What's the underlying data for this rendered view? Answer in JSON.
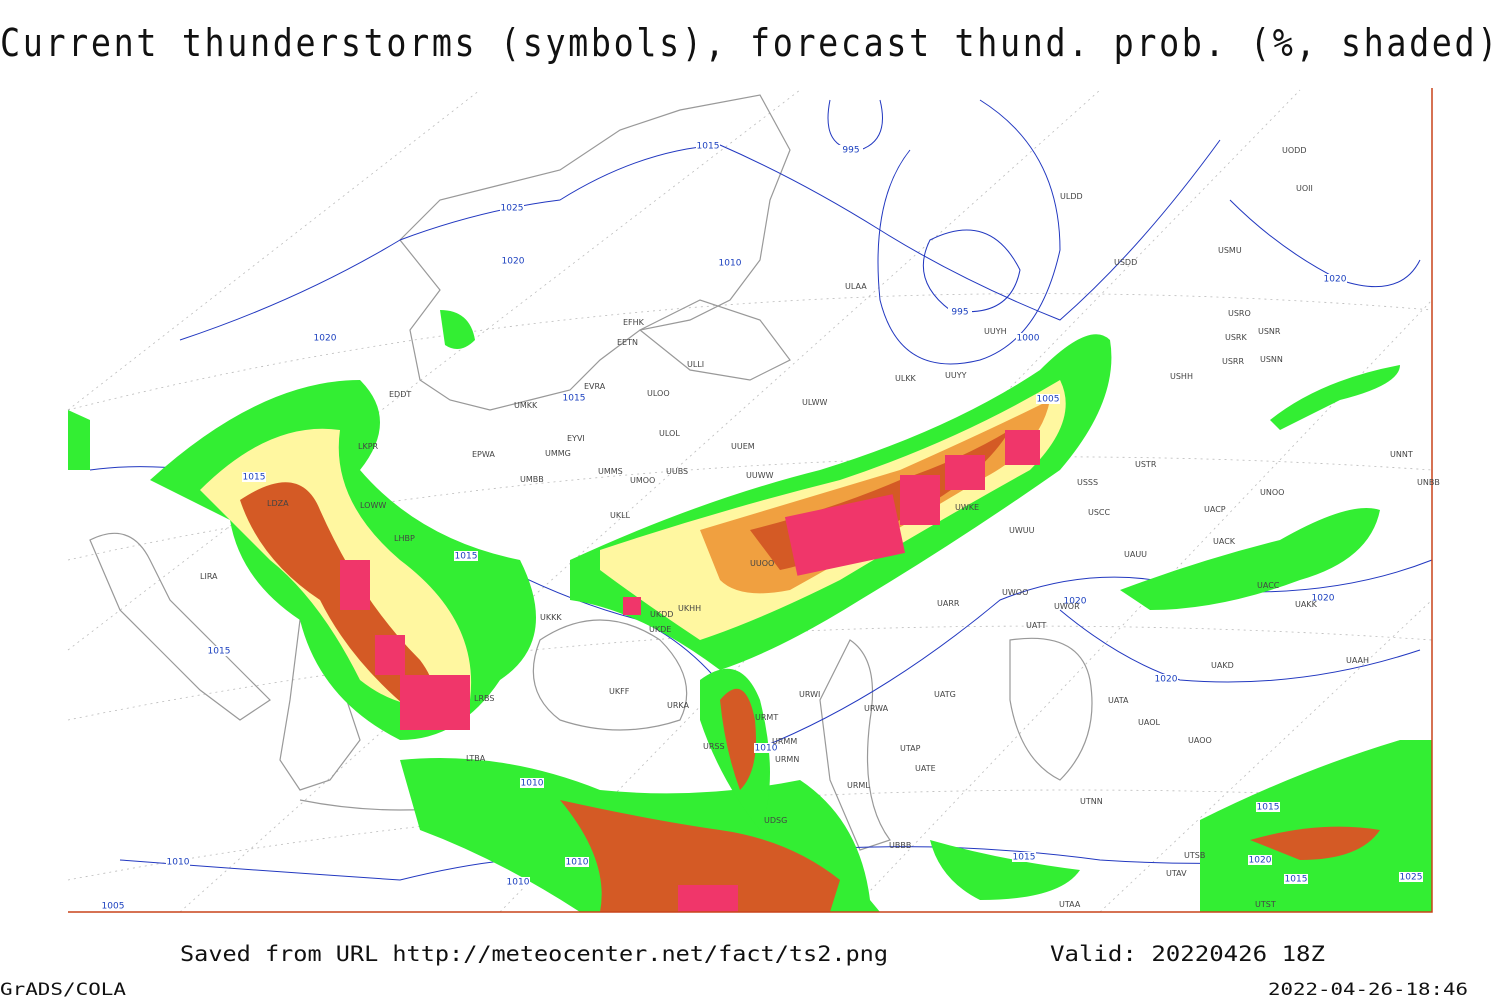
{
  "title": "Current thunderstorms (symbols), forecast thund. prob. (%, shaded)",
  "footer": {
    "saved": "Saved from URL http://meteocenter.net/fact/ts2.png",
    "valid": "Valid: 20220426 18Z",
    "software": "GrADS/COLA",
    "timestamp": "2022-04-26-18:46"
  },
  "isobar_labels": [
    "1015",
    "995",
    "1025",
    "1020",
    "1010",
    "995",
    "1000",
    "1005",
    "1020",
    "1015",
    "1015",
    "1015",
    "1015",
    "1020",
    "1020",
    "1020",
    "1020",
    "1010",
    "1010",
    "1010",
    "1010",
    "1010",
    "1005",
    "1015",
    "1015",
    "1020",
    "1015",
    "1025"
  ],
  "stations": [
    "ULDD",
    "USDD",
    "USMU",
    "USRO",
    "USRK",
    "USNR",
    "USRR",
    "USNN",
    "USHH",
    "ULAA",
    "UUYH",
    "ULKK",
    "UUYY",
    "ULWW",
    "EFHK",
    "EETN",
    "ULLI",
    "EVRA",
    "ULOO",
    "UMKK",
    "EDDT",
    "ULOL",
    "UUEM",
    "EYVI",
    "EPWA",
    "UMMG",
    "UMMS",
    "UUBS",
    "UMOO",
    "UUWW",
    "UMBB",
    "USTR",
    "USSS",
    "USCC",
    "UNOO",
    "UNNT",
    "UNBB",
    "UWKE",
    "UWUU",
    "UACP",
    "UACK",
    "UAUU",
    "UAKK",
    "UACC",
    "UWOO",
    "UWOR",
    "UARR",
    "UATT",
    "UAKD",
    "UAAH",
    "UATA",
    "UAOL",
    "UAOO",
    "UATG",
    "URWI",
    "URWA",
    "UKHH",
    "UKDD",
    "UKDE",
    "UKKK",
    "UKFF",
    "URKA",
    "URMT",
    "URMM",
    "URSS",
    "URMN",
    "UTAP",
    "UATE",
    "URML",
    "UDSG",
    "UBBB",
    "UTNN",
    "UTSB",
    "UTAV",
    "UTAA",
    "UTST",
    "LDZA",
    "LOWW",
    "LHBP",
    "LRBS",
    "LIRA",
    "LTBA",
    "UUOO",
    "UKLL",
    "LKPR",
    "UODD",
    "UOII"
  ]
}
